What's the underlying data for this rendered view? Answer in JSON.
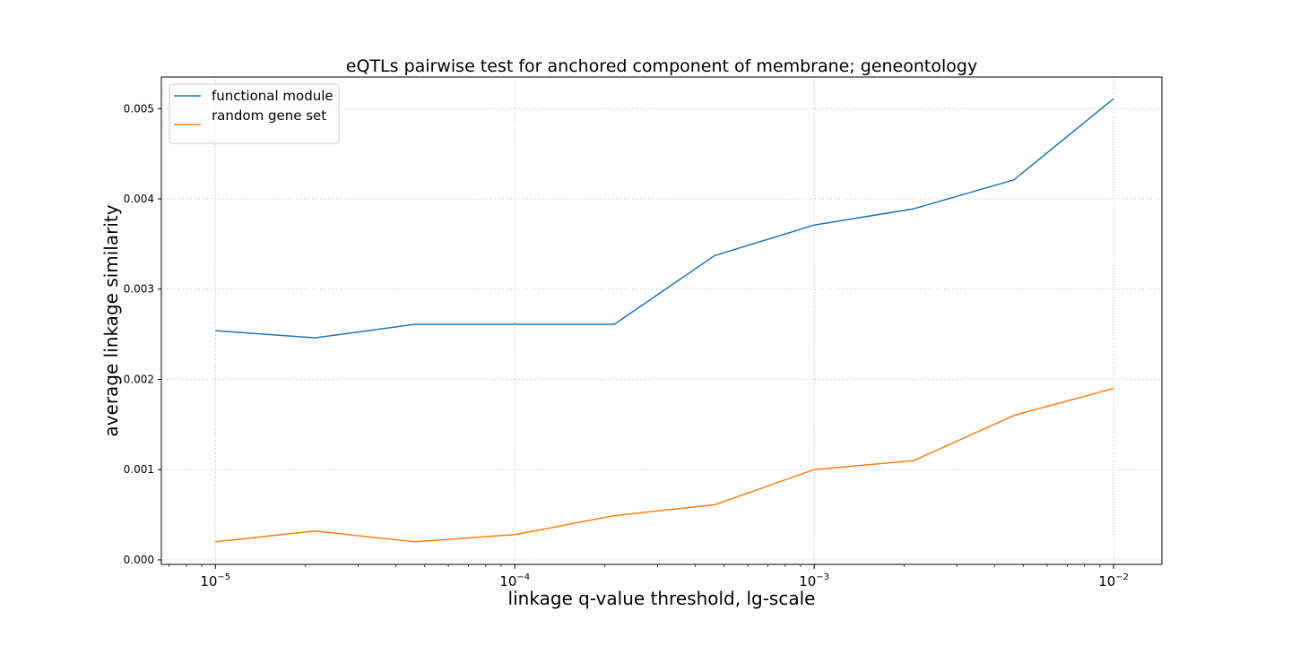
{
  "chart_data": {
    "type": "line",
    "title": "eQTLs pairwise test for anchored component of membrane; geneontology",
    "xlabel": "linkage q-value threshold, lg-scale",
    "ylabel": "average linkage similarity",
    "x_scale": "log",
    "x": [
      1e-05,
      2.15e-05,
      4.64e-05,
      0.0001,
      0.000215,
      0.000464,
      0.001,
      0.00215,
      0.00464,
      0.01
    ],
    "xlim": [
      6.6e-06,
      0.0145
    ],
    "ylim": [
      -5e-05,
      0.00535
    ],
    "y_ticks": [
      "0.000",
      "0.001",
      "0.002",
      "0.003",
      "0.004",
      "0.005"
    ],
    "x_ticks": [
      {
        "value": 1e-05,
        "base": "10",
        "exp": "−5"
      },
      {
        "value": 0.0001,
        "base": "10",
        "exp": "−4"
      },
      {
        "value": 0.001,
        "base": "10",
        "exp": "−3"
      },
      {
        "value": 0.01,
        "base": "10",
        "exp": "−2"
      }
    ],
    "grid": true,
    "legend_position": "top-left",
    "series": [
      {
        "name": "functional module",
        "color": "#1f77b4",
        "values": [
          0.00254,
          0.00246,
          0.00261,
          0.00261,
          0.00261,
          0.00337,
          0.00371,
          0.00389,
          0.00421,
          0.00511
        ]
      },
      {
        "name": "random gene set",
        "color": "#ff7f0e",
        "values": [
          0.0002,
          0.00032,
          0.0002,
          0.00028,
          0.00049,
          0.00061,
          0.001,
          0.0011,
          0.0016,
          0.0019
        ]
      }
    ]
  }
}
